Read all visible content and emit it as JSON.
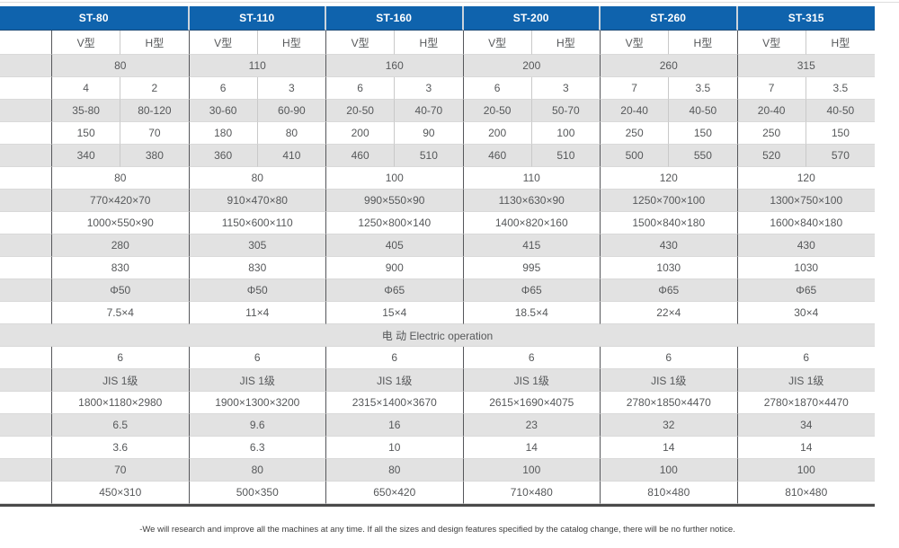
{
  "page": {
    "footer_note": "-We will research and improve all the machines at any time. If all the sizes and design features specified by the catalog change, there will be no further notice.",
    "colors": {
      "header_bg": "#0f63ad",
      "header_text": "#ffffff",
      "row_alt_bg": "#e2e2e2",
      "text": "#56585a",
      "border_dark": "#4a4a4a"
    }
  },
  "table": {
    "models": [
      "ST-80",
      "ST-110",
      "ST-160",
      "ST-200",
      "ST-260",
      "ST-315"
    ],
    "sub_headers": [
      "V型",
      "H型"
    ],
    "rows": [
      {
        "type": "merged",
        "values": [
          "80",
          "110",
          "160",
          "200",
          "260",
          "315"
        ]
      },
      {
        "type": "split",
        "values": [
          [
            "4",
            "2"
          ],
          [
            "6",
            "3"
          ],
          [
            "6",
            "3"
          ],
          [
            "6",
            "3"
          ],
          [
            "7",
            "3.5"
          ],
          [
            "7",
            "3.5"
          ]
        ]
      },
      {
        "type": "split",
        "values": [
          [
            "35-80",
            "80-120"
          ],
          [
            "30-60",
            "60-90"
          ],
          [
            "20-50",
            "40-70"
          ],
          [
            "20-50",
            "50-70"
          ],
          [
            "20-40",
            "40-50"
          ],
          [
            "20-40",
            "40-50"
          ]
        ]
      },
      {
        "type": "split",
        "values": [
          [
            "150",
            "70"
          ],
          [
            "180",
            "80"
          ],
          [
            "200",
            "90"
          ],
          [
            "200",
            "100"
          ],
          [
            "250",
            "150"
          ],
          [
            "250",
            "150"
          ]
        ]
      },
      {
        "type": "split",
        "values": [
          [
            "340",
            "380"
          ],
          [
            "360",
            "410"
          ],
          [
            "460",
            "510"
          ],
          [
            "460",
            "510"
          ],
          [
            "500",
            "550"
          ],
          [
            "520",
            "570"
          ]
        ]
      },
      {
        "type": "merged",
        "values": [
          "80",
          "80",
          "100",
          "110",
          "120",
          "120"
        ]
      },
      {
        "type": "merged",
        "values": [
          "770×420×70",
          "910×470×80",
          "990×550×90",
          "1130×630×90",
          "1250×700×100",
          "1300×750×100"
        ]
      },
      {
        "type": "merged",
        "values": [
          "1000×550×90",
          "1150×600×110",
          "1250×800×140",
          "1400×820×160",
          "1500×840×180",
          "1600×840×180"
        ]
      },
      {
        "type": "merged",
        "values": [
          "280",
          "305",
          "405",
          "415",
          "430",
          "430"
        ]
      },
      {
        "type": "merged",
        "values": [
          "830",
          "830",
          "900",
          "995",
          "1030",
          "1030"
        ]
      },
      {
        "type": "merged",
        "values": [
          "Φ50",
          "Φ50",
          "Φ65",
          "Φ65",
          "Φ65",
          "Φ65"
        ]
      },
      {
        "type": "merged",
        "values": [
          "7.5×4",
          "11×4",
          "15×4",
          "18.5×4",
          "22×4",
          "30×4"
        ]
      },
      {
        "type": "fullspan",
        "value": "电 动 Electric operation"
      },
      {
        "type": "merged",
        "values": [
          "6",
          "6",
          "6",
          "6",
          "6",
          "6"
        ]
      },
      {
        "type": "merged",
        "values": [
          "JIS 1级",
          "JIS 1级",
          "JIS 1级",
          "JIS 1级",
          "JIS 1级",
          "JIS 1级"
        ]
      },
      {
        "type": "merged",
        "values": [
          "1800×1180×2980",
          "1900×1300×3200",
          "2315×1400×3670",
          "2615×1690×4075",
          "2780×1850×4470",
          "2780×1870×4470"
        ]
      },
      {
        "type": "merged",
        "values": [
          "6.5",
          "9.6",
          "16",
          "23",
          "32",
          "34"
        ]
      },
      {
        "type": "merged",
        "values": [
          "3.6",
          "6.3",
          "10",
          "14",
          "14",
          "14"
        ]
      },
      {
        "type": "merged",
        "values": [
          "70",
          "80",
          "80",
          "100",
          "100",
          "100"
        ]
      },
      {
        "type": "merged",
        "values": [
          "450×310",
          "500×350",
          "650×420",
          "710×480",
          "810×480",
          "810×480"
        ]
      }
    ]
  }
}
